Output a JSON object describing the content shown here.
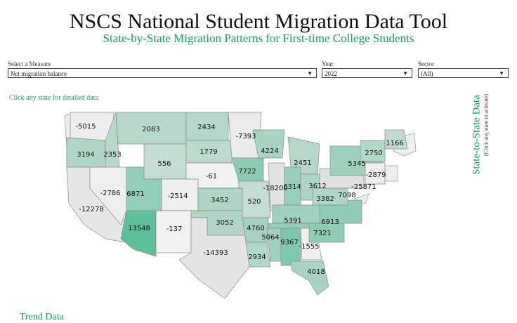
{
  "header": {
    "title": "NSCS National Student Migration Data Tool",
    "subtitle": "State-by-State Migration Patterns for First-time College Students"
  },
  "filters": {
    "measure": {
      "label": "Select a Measure",
      "value": "Net migration balance"
    },
    "year": {
      "label": "Year",
      "value": "2022"
    },
    "sector": {
      "label": "Sector",
      "value": "(All)"
    }
  },
  "map": {
    "hint": "Click any state for detailed data",
    "side_title": "State-to-State Data",
    "side_subtitle": "(Click any state to activate)",
    "colors": {
      "low": "#f1f1f1",
      "mid": "#c9ddd4",
      "high": "#5fbf98"
    },
    "states": [
      {
        "id": "WA",
        "value": -5015
      },
      {
        "id": "OR",
        "value": 3194
      },
      {
        "id": "CA",
        "value": -12278
      },
      {
        "id": "ID",
        "value": 2353
      },
      {
        "id": "NV",
        "value": -2786
      },
      {
        "id": "MT",
        "value": 2083
      },
      {
        "id": "WY",
        "value": 556
      },
      {
        "id": "UT",
        "value": 6871
      },
      {
        "id": "AZ",
        "value": 13548
      },
      {
        "id": "CO",
        "value": -2514
      },
      {
        "id": "NM",
        "value": -137
      },
      {
        "id": "ND",
        "value": 2434
      },
      {
        "id": "SD",
        "value": 1779
      },
      {
        "id": "NE",
        "value": -61
      },
      {
        "id": "KS",
        "value": 3452
      },
      {
        "id": "OK",
        "value": 3052
      },
      {
        "id": "TX",
        "value": -14393
      },
      {
        "id": "MN",
        "value": -7393
      },
      {
        "id": "IA",
        "value": 7722
      },
      {
        "id": "MO",
        "value": 520
      },
      {
        "id": "AR",
        "value": 4760
      },
      {
        "id": "LA",
        "value": 2934
      },
      {
        "id": "WI",
        "value": 4224
      },
      {
        "id": "IL",
        "value": -18200
      },
      {
        "id": "MI",
        "value": 2451
      },
      {
        "id": "IN",
        "value": 6314
      },
      {
        "id": "OH",
        "value": 3612
      },
      {
        "id": "KY",
        "value": 5391
      },
      {
        "id": "TN",
        "value": 6913
      },
      {
        "id": "MS",
        "value": 5064
      },
      {
        "id": "AL",
        "value": 9367
      },
      {
        "id": "GA",
        "value": -1555
      },
      {
        "id": "FL",
        "value": 4018
      },
      {
        "id": "SC",
        "value": 7321
      },
      {
        "id": "NC",
        "value": 7098
      },
      {
        "id": "VA",
        "value": 3382
      },
      {
        "id": "PA",
        "value": -25871
      },
      {
        "id": "NY",
        "value": 5345
      },
      {
        "id": "NJ",
        "value": -2879
      },
      {
        "id": "VT",
        "value": 2750
      },
      {
        "id": "ME",
        "value": 1166
      }
    ]
  },
  "trend": {
    "title": "Trend Data"
  }
}
